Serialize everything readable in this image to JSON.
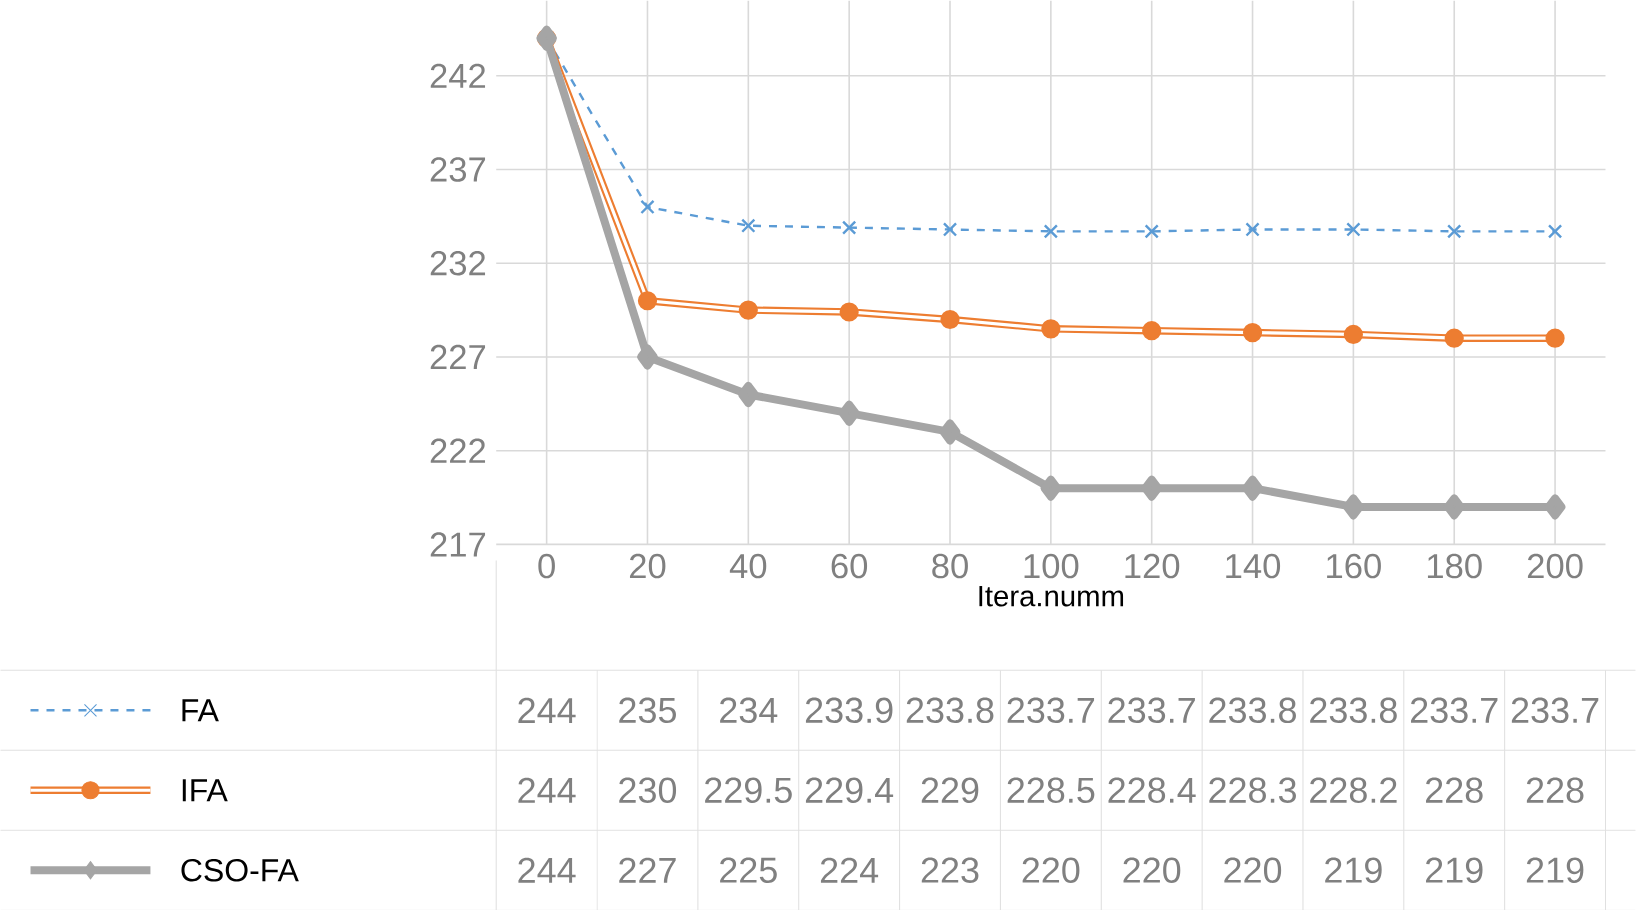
{
  "chart_data": {
    "type": "line",
    "xlabel": "Itera.numm",
    "categories": [
      "0",
      "20",
      "40",
      "60",
      "80",
      "100",
      "120",
      "140",
      "160",
      "180",
      "200"
    ],
    "series": [
      {
        "name": "FA",
        "color": "#5b9bd5",
        "marker": "cross",
        "line_style": "dashed",
        "values": [
          244,
          235,
          234,
          233.9,
          233.8,
          233.7,
          233.7,
          233.8,
          233.8,
          233.7,
          233.7
        ]
      },
      {
        "name": "IFA",
        "color": "#ed7d31",
        "marker": "circle",
        "line_style": "solid",
        "values": [
          244,
          230,
          229.5,
          229.4,
          229,
          228.5,
          228.4,
          228.3,
          228.2,
          228,
          228
        ]
      },
      {
        "name": "CSO-FA",
        "color": "#a5a5a5",
        "marker": "diamond",
        "line_style": "solid",
        "values": [
          244,
          227,
          225,
          224,
          223,
          220,
          220,
          220,
          219,
          219,
          219
        ]
      }
    ],
    "ylim": [
      217,
      246
    ],
    "yticks": [
      217,
      222,
      227,
      232,
      237,
      242
    ],
    "grid": true,
    "legend": "bottom left",
    "data_labels": true
  }
}
